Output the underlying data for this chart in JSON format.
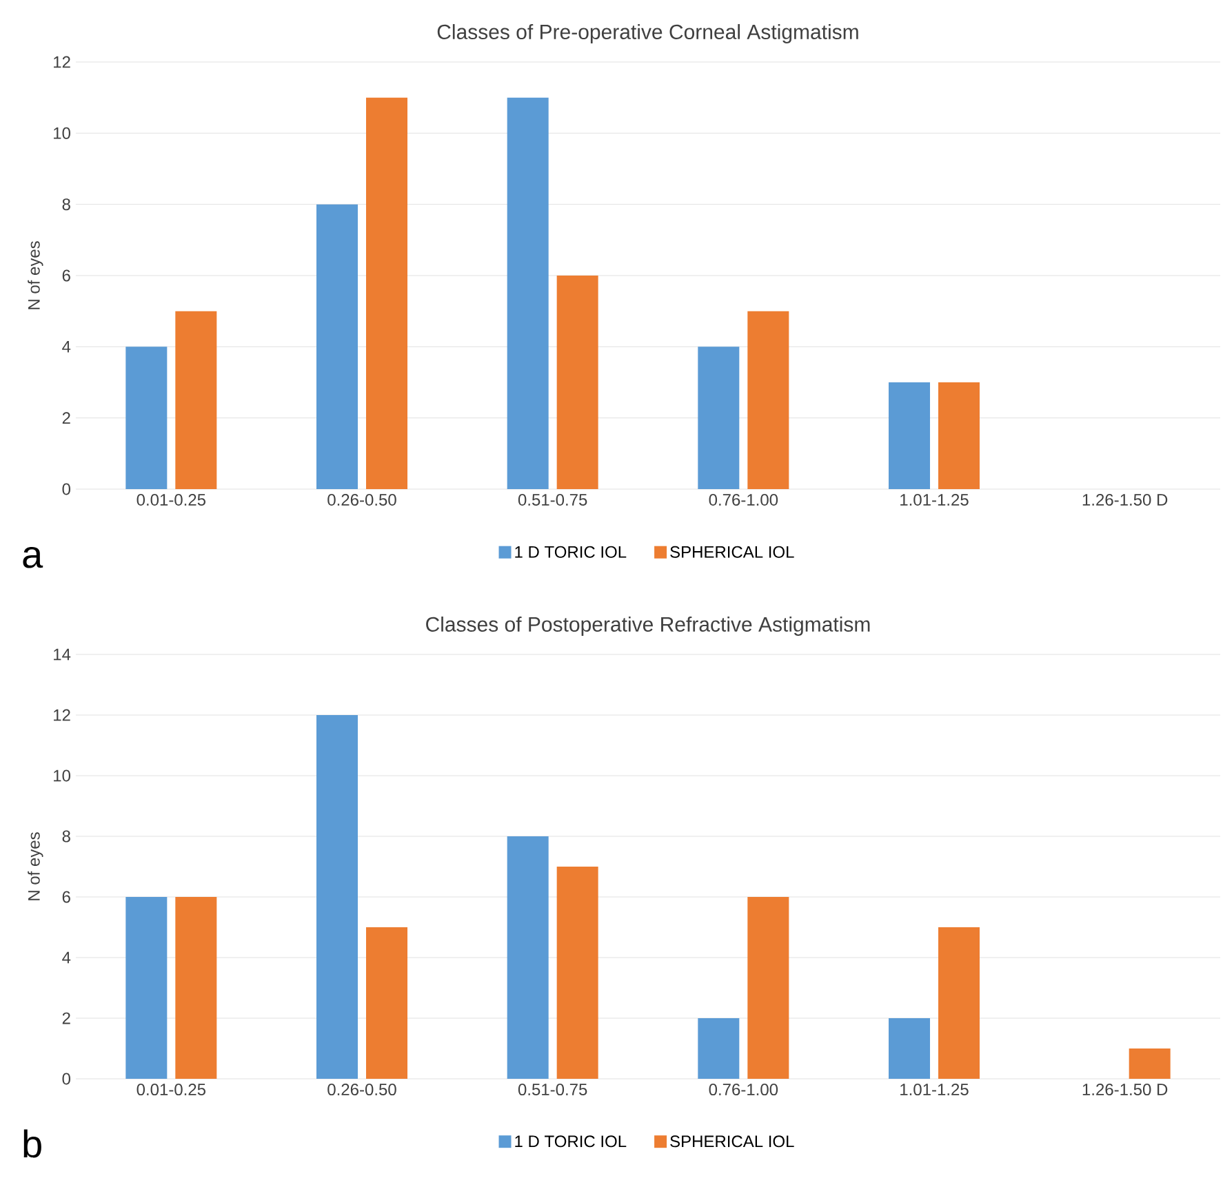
{
  "chart_data": [
    {
      "type": "bar",
      "title": "Classes of Pre-operative Corneal Astigmatism",
      "ylabel": "N of eyes",
      "categories": [
        "0.01-0.25",
        "0.26-0.50",
        "0.51-0.75",
        "0.76-1.00",
        "1.01-1.25",
        "1.26-1.50 D"
      ],
      "series": [
        {
          "name": "1 D TORIC IOL",
          "color": "#5b9bd5",
          "values": [
            4,
            8,
            11,
            4,
            3,
            0
          ]
        },
        {
          "name": "SPHERICAL IOL",
          "color": "#ed7d31",
          "values": [
            5,
            11,
            6,
            5,
            3,
            0
          ]
        }
      ],
      "ylim": [
        0,
        12
      ],
      "yticks": [
        0,
        2,
        4,
        6,
        8,
        10,
        12
      ],
      "grid": "y",
      "legend": "bottom",
      "annotations": [
        "a"
      ]
    },
    {
      "type": "bar",
      "title": "Classes of Postoperative Refractive Astigmatism",
      "ylabel": "N of eyes",
      "categories": [
        "0.01-0.25",
        "0.26-0.50",
        "0.51-0.75",
        "0.76-1.00",
        "1.01-1.25",
        "1.26-1.50 D"
      ],
      "series": [
        {
          "name": "1 D TORIC IOL",
          "color": "#5b9bd5",
          "values": [
            6,
            12,
            8,
            2,
            2,
            0
          ]
        },
        {
          "name": "SPHERICAL IOL",
          "color": "#ed7d31",
          "values": [
            6,
            5,
            7,
            6,
            5,
            1
          ]
        }
      ],
      "ylim": [
        0,
        14
      ],
      "yticks": [
        0,
        2,
        4,
        6,
        8,
        10,
        12,
        14
      ],
      "grid": "y",
      "legend": "bottom",
      "annotations": [
        "b"
      ]
    }
  ]
}
